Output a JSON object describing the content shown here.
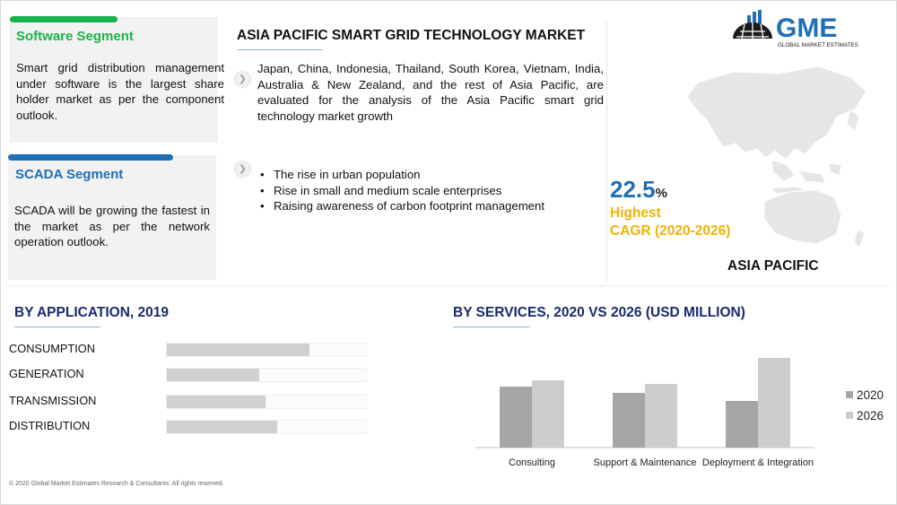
{
  "header": {
    "title": "ASIA PACIFIC SMART GRID TECHNOLOGY MARKET",
    "paragraph": "Japan, China, Indonesia, Thailand, South Korea, Vietnam, India, Australia & New Zealand, and the rest of Asia Pacific, are evaluated for the analysis of the Asia Pacific smart grid technology market growth",
    "bullets": [
      "The rise in urban population",
      "Rise in small and medium scale enterprises",
      "Raising awareness of carbon footprint management"
    ]
  },
  "segments": [
    {
      "title": "Software Segment",
      "text": "Smart grid distribution management under software is the largest share holder market as per the component outlook.",
      "accent": "#1bb24b",
      "title_color": "#1bb24b"
    },
    {
      "title": "SCADA Segment",
      "text": "SCADA will be growing the fastest in the market as per the network operation outlook.",
      "accent": "#1f6fb5",
      "title_color": "#1f6fb5"
    }
  ],
  "logo": {
    "text": "GME",
    "subtitle": "GLOBAL MARKET ESTIMATES",
    "color": "#1f6fb5"
  },
  "cagr": {
    "value": "22.5",
    "unit": "%",
    "line1": "Highest",
    "line2": "CAGR (2020-2026)",
    "region": "ASIA PACIFIC"
  },
  "application_chart": {
    "title": "BY  APPLICATION, 2019",
    "chart_data": {
      "type": "bar",
      "orientation": "horizontal",
      "categories": [
        "CONSUMPTION",
        "GENERATION",
        "TRANSMISSION",
        "DISTRIBUTION"
      ],
      "values": [
        0.71,
        0.46,
        0.49,
        0.55
      ],
      "scale": "relative share (unlabeled)",
      "color": "#d0d0d0"
    }
  },
  "services_chart": {
    "title": "BY SERVICES,  2020 VS 2026 (USD MILLION)",
    "chart_data": {
      "type": "bar",
      "categories": [
        "Consulting",
        "Support & Maintenance",
        "Deployment & Integration"
      ],
      "series": [
        {
          "name": "2020",
          "values": [
            68,
            61,
            52
          ],
          "color": "#a6a6a6"
        },
        {
          "name": "2026",
          "values": [
            75,
            71,
            100
          ],
          "color": "#cdcdcd"
        }
      ],
      "ylim": [
        0,
        100
      ],
      "legend": "right",
      "grid": false
    }
  },
  "footer": "© 2020 Global Market Estimates Research & Consultants. All rights reserved."
}
